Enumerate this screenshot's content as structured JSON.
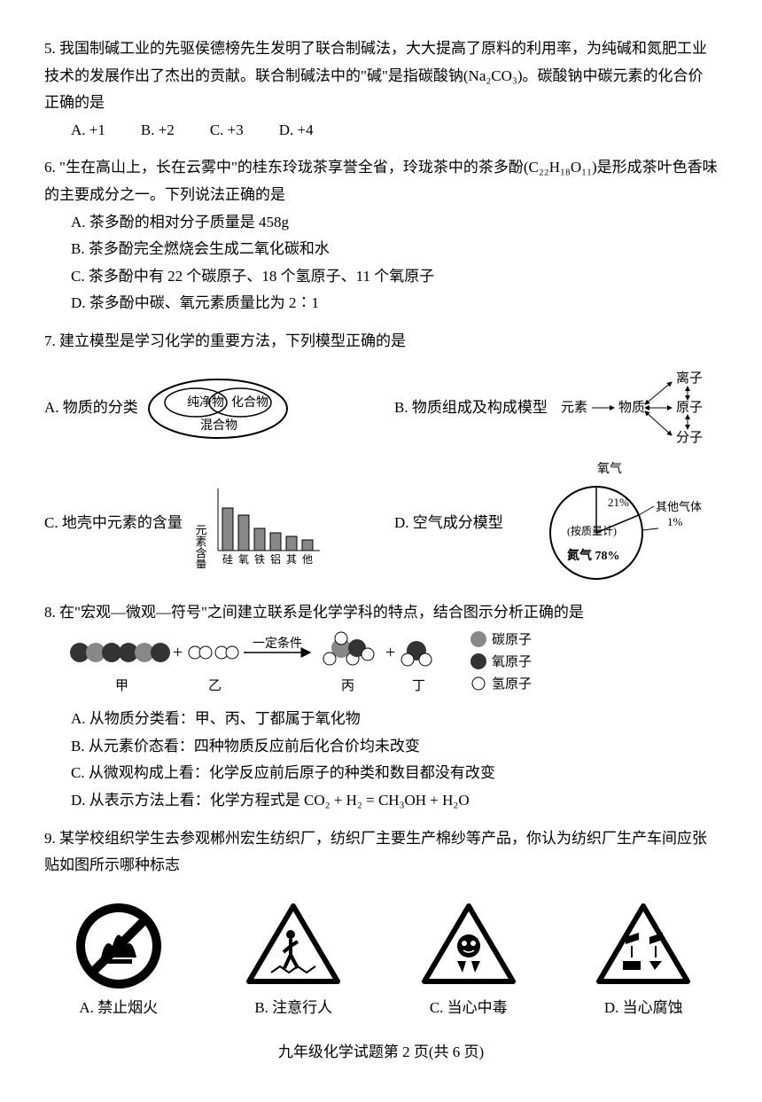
{
  "q5": {
    "text": "5. 我国制碱工业的先驱侯德榜先生发明了联合制碱法，大大提高了原料的利用率，为纯碱和氮肥工业技术的发展作出了杰出的贡献。联合制碱法中的\"碱\"是指碳酸钠(Na₂CO₃)。碳酸钠中碳元素的化合价正确的是",
    "a": "A. +1",
    "b": "B. +2",
    "c": "C. +3",
    "d": "D. +4"
  },
  "q6": {
    "text": "6. \"生在高山上，长在云雾中\"的桂东玲珑茶享誉全省，玲珑茶中的茶多酚(C₂₂H₁₈O₁₁)是形成茶叶色香味的主要成分之一。下列说法正确的是",
    "a": "A. 茶多酚的相对分子质量是 458g",
    "b": "B. 茶多酚完全燃烧会生成二氧化碳和水",
    "c": "C. 茶多酚中有 22 个碳原子、18 个氢原子、11 个氧原子",
    "d": "D. 茶多酚中碳、氧元素质量比为 2∶1"
  },
  "q7": {
    "text": "7. 建立模型是学习化学的重要方法，下列模型正确的是",
    "a": "A. 物质的分类",
    "b": "B. 物质组成及构成模型",
    "c": "C. 地壳中元素的含量",
    "d": "D. 空气成分模型",
    "venn": {
      "l": "纯净物",
      "r": "化合物",
      "bottom": "混合物"
    },
    "arrow": {
      "c": "物质",
      "l": "元素",
      "t": "离子",
      "r": "原子",
      "b": "分子"
    },
    "bar": {
      "ylabel": "元素含量",
      "labels": [
        "硅",
        "氧",
        "铁",
        "铝",
        "其",
        "他"
      ],
      "vals": [
        48,
        40,
        25,
        20,
        16,
        12
      ],
      "color": "#888888"
    },
    "pie": {
      "title": "氧气",
      "o2": "21%",
      "n2": "氮气 78%",
      "other": "其他气体",
      "pct": "1%",
      "note": "(按质量计)"
    }
  },
  "q8": {
    "text": "8. 在\"宏观—微观—符号\"之间建立联系是化学学科的特点，结合图示分析正确的是",
    "cond": "一定条件",
    "legend": {
      "c": "碳原子",
      "o": "氧原子",
      "h": "氢原子"
    },
    "labels": {
      "jia": "甲",
      "yi": "乙",
      "bing": "丙",
      "ding": "丁"
    },
    "a": "A. 从物质分类看：甲、丙、丁都属于氧化物",
    "b": "B. 从元素价态看：四种物质反应前后化合价均未改变",
    "c": "C. 从微观构成上看：化学反应前后原子的种类和数目都没有改变",
    "d": "D. 从表示方法上看：化学方程式是 CO₂ + H₂ = CH₃OH + H₂O"
  },
  "q9": {
    "text": "9. 某学校组织学生去参观郴州宏生纺织厂，纺织厂主要生产棉纱等产品，你认为纺织厂生产车间应张贴如图所示哪种标志",
    "a": "A. 禁止烟火",
    "b": "B. 注意行人",
    "c": "C. 当心中毒",
    "d": "D. 当心腐蚀"
  },
  "footer": "九年级化学试题第 2 页(共 6 页)"
}
